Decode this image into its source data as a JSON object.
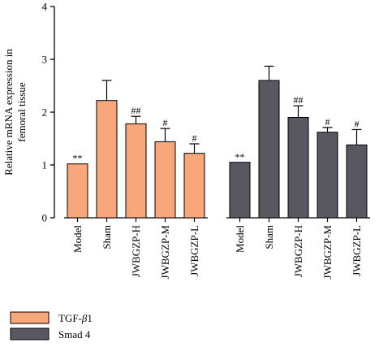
{
  "chart_data": {
    "type": "bar",
    "ylabel_line1": "Relative mRNA expression in",
    "ylabel_line2": "femoral tissue",
    "ylim": [
      0,
      4
    ],
    "yticks": [
      "0",
      "1",
      "2",
      "3",
      "4"
    ],
    "grid": false,
    "legend_position": "bottom-left",
    "groups": [
      {
        "name": "TGF-β1",
        "legend_prefix": "TGF-",
        "legend_symbol": "β",
        "legend_suffix": "1",
        "color": "#F7A779",
        "categories": [
          "Model",
          "Sham",
          "JWBGZP-H",
          "JWBGZP-M",
          "JWBGZP-L"
        ],
        "values": [
          1.02,
          2.22,
          1.78,
          1.44,
          1.22
        ],
        "errors": [
          0.0,
          0.38,
          0.14,
          0.25,
          0.18
        ],
        "annotations": [
          "**",
          "",
          "##",
          "#",
          "#"
        ]
      },
      {
        "name": "Smad 4",
        "legend_prefix": "Smad 4",
        "legend_symbol": "",
        "legend_suffix": "",
        "color": "#595860",
        "categories": [
          "Model",
          "Sham",
          "JWBGZP-H",
          "JWBGZP-M",
          "JWBGZP-L"
        ],
        "values": [
          1.05,
          2.6,
          1.9,
          1.62,
          1.38
        ],
        "errors": [
          0.0,
          0.27,
          0.22,
          0.09,
          0.29
        ],
        "annotations": [
          "**",
          "",
          "##",
          "#",
          "#"
        ]
      }
    ]
  }
}
